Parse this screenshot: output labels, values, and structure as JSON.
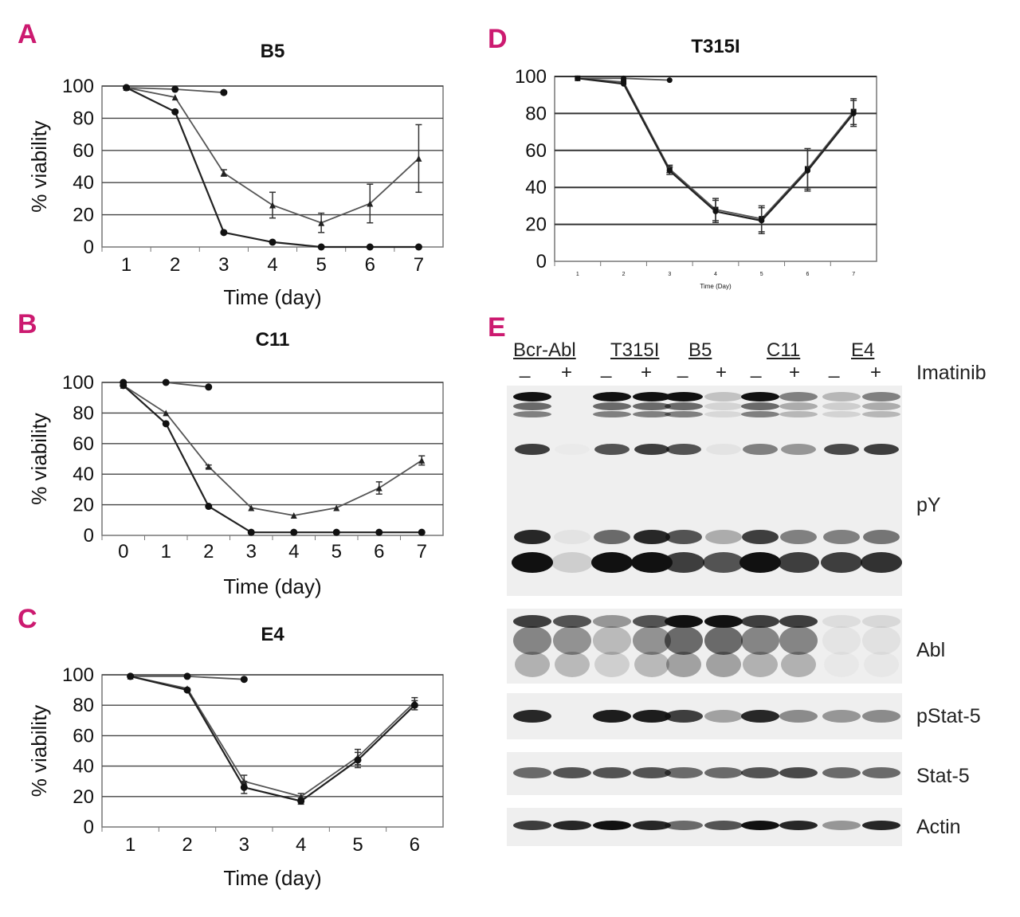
{
  "panels": {
    "a": "A",
    "b": "B",
    "c": "C",
    "d": "D",
    "e": "E"
  },
  "chart_data": [
    {
      "type": "line",
      "title": "B5",
      "xlabel": "Time (day)",
      "ylabel": "% viability",
      "ylim": [
        0,
        100
      ],
      "yticks": [
        0,
        20,
        40,
        60,
        80,
        100
      ],
      "categories": [
        "1",
        "2",
        "3",
        "4",
        "5",
        "6",
        "7"
      ],
      "grid": true,
      "series": [
        {
          "values": [
            99,
            98,
            96,
            null,
            null,
            null,
            null
          ],
          "marker": "circle"
        },
        {
          "values": [
            99,
            93,
            46,
            26,
            15,
            27,
            55
          ],
          "marker": "triangle",
          "errors": [
            0,
            0,
            2,
            8,
            6,
            12,
            21
          ]
        },
        {
          "values": [
            99,
            84,
            9,
            3,
            0,
            0,
            0
          ],
          "marker": "circle"
        }
      ]
    },
    {
      "type": "line",
      "title": "C11",
      "xlabel": "Time (day)",
      "ylabel": "% viability",
      "ylim": [
        0,
        100
      ],
      "yticks": [
        0,
        20,
        40,
        60,
        80,
        100
      ],
      "categories": [
        "0",
        "1",
        "2",
        "3",
        "4",
        "5",
        "6",
        "7"
      ],
      "grid": true,
      "series": [
        {
          "values": [
            100,
            100,
            97,
            null,
            null,
            null,
            null,
            null
          ],
          "marker": "circle"
        },
        {
          "values": [
            98,
            80,
            45,
            18,
            13,
            18,
            31,
            49
          ],
          "marker": "triangle",
          "errors": [
            0,
            0,
            1,
            0,
            0,
            0,
            4,
            3
          ]
        },
        {
          "values": [
            98,
            73,
            19,
            2,
            2,
            2,
            2,
            2
          ],
          "marker": "circle"
        }
      ]
    },
    {
      "type": "line",
      "title": "E4",
      "xlabel": "Time (day)",
      "ylabel": "% viability",
      "ylim": [
        0,
        100
      ],
      "yticks": [
        0,
        20,
        40,
        60,
        80,
        100
      ],
      "categories": [
        "1",
        "2",
        "3",
        "4",
        "5",
        "6"
      ],
      "grid": true,
      "series": [
        {
          "values": [
            99,
            99,
            97,
            null,
            null,
            null
          ],
          "marker": "circle"
        },
        {
          "values": [
            99,
            91,
            30,
            20,
            46,
            82
          ],
          "marker": "triangle",
          "errors": [
            0,
            0,
            4,
            2,
            5,
            3
          ]
        },
        {
          "values": [
            99,
            90,
            26,
            17,
            44,
            80
          ],
          "marker": "circle",
          "errors": [
            0,
            0,
            4,
            2,
            5,
            3
          ]
        }
      ]
    },
    {
      "type": "line",
      "title": "T315I",
      "xlabel": "Time (Day)",
      "ylabel": "",
      "ylim": [
        0,
        100
      ],
      "yticks": [
        0,
        20,
        40,
        60,
        80,
        100
      ],
      "categories": [
        "1",
        "2",
        "3",
        "4",
        "5",
        "6",
        "7"
      ],
      "grid": true,
      "series": [
        {
          "values": [
            99,
            99,
            98,
            null,
            null,
            null,
            null
          ],
          "marker": "circle"
        },
        {
          "values": [
            99,
            97,
            50,
            28,
            23,
            50,
            81
          ],
          "marker": "square",
          "errors": [
            0,
            0,
            2,
            6,
            7,
            11,
            7
          ]
        },
        {
          "values": [
            99,
            96,
            49,
            27,
            22,
            49,
            80
          ],
          "marker": "circle",
          "errors": [
            0,
            0,
            2,
            6,
            7,
            11,
            7
          ]
        }
      ]
    }
  ],
  "blot": {
    "lanes": [
      "Bcr-Abl",
      "T315I",
      "B5",
      "C11",
      "E4"
    ],
    "signs": [
      "_",
      "+",
      "_",
      "+",
      "_",
      "+",
      "_",
      "+",
      "_",
      "+"
    ],
    "treatment_label": "Imatinib",
    "rows": [
      "pY",
      "Abl",
      "pStat-5",
      "Stat-5",
      "Actin"
    ]
  }
}
